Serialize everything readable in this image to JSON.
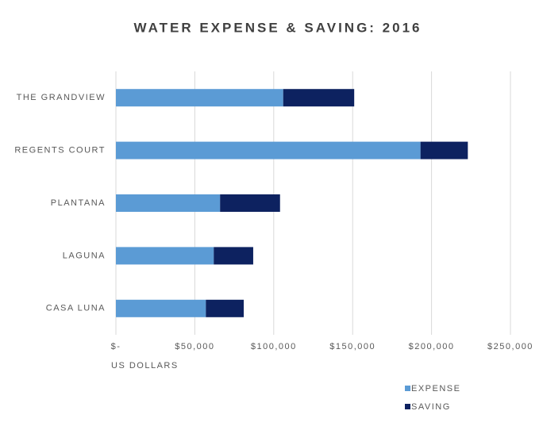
{
  "chart_data": {
    "type": "bar",
    "orientation": "horizontal",
    "stacked": true,
    "title": "WATER EXPENSE & SAVING: 2016",
    "x_label": "US DOLLARS",
    "categories": [
      "THE GRANDVIEW",
      "REGENTS COURT",
      "PLANTANA",
      "LAGUNA",
      "CASA LUNA"
    ],
    "series": [
      {
        "name": "EXPENSE",
        "color": "#5b9bd5",
        "values": [
          106000,
          193000,
          66000,
          62000,
          57000
        ]
      },
      {
        "name": "SAVING",
        "color": "#0d2260",
        "values": [
          45000,
          30000,
          38000,
          25000,
          24000
        ]
      }
    ],
    "xlim": [
      0,
      250000
    ],
    "xticks": [
      {
        "value": 0,
        "label": "$-"
      },
      {
        "value": 50000,
        "label": "$50,000"
      },
      {
        "value": 100000,
        "label": "$100,000"
      },
      {
        "value": 150000,
        "label": "$150,000"
      },
      {
        "value": 200000,
        "label": "$200,000"
      },
      {
        "value": 250000,
        "label": "$250,000"
      }
    ],
    "grid": true,
    "legend": "bottom-right"
  }
}
